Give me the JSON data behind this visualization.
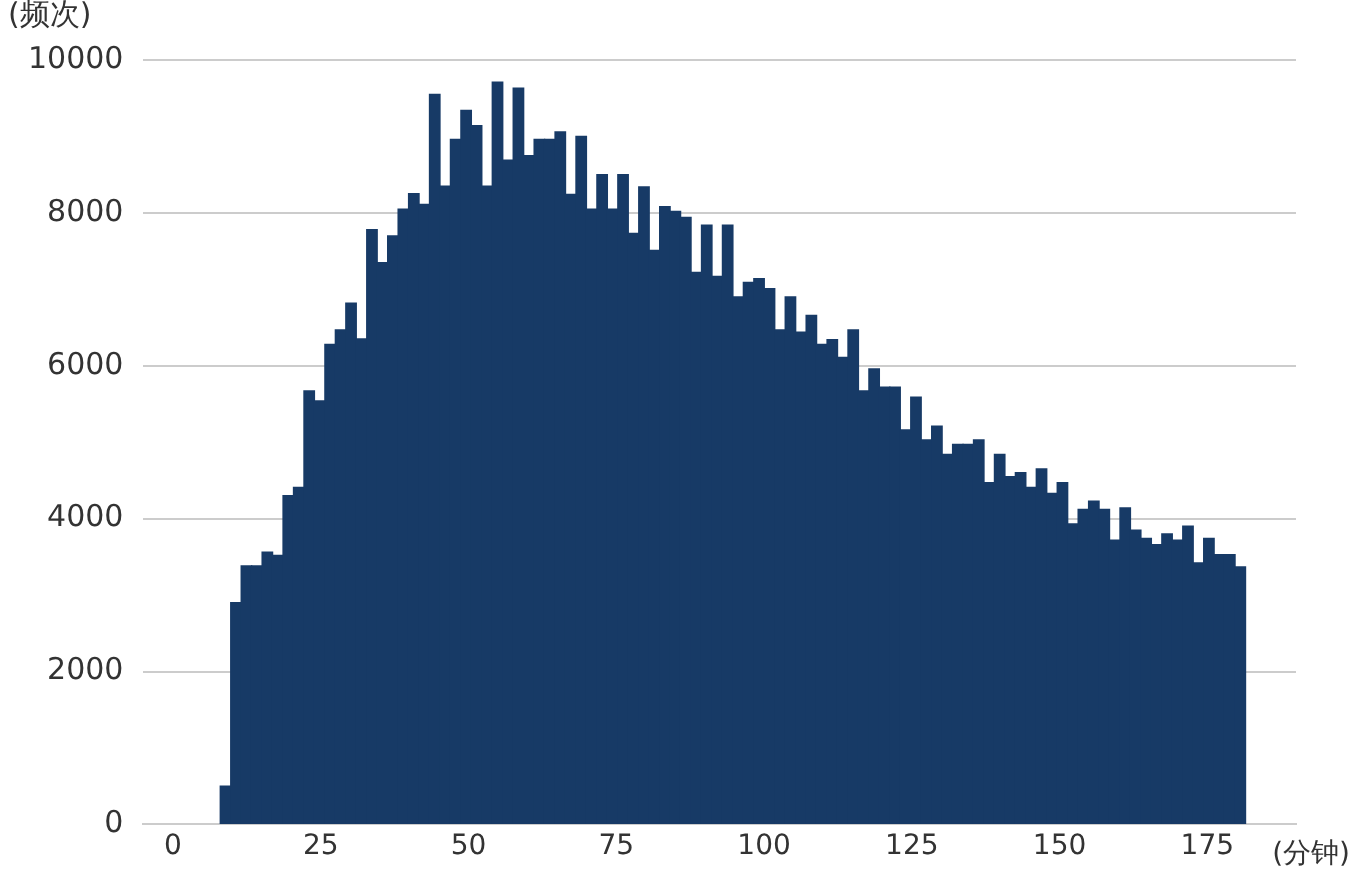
{
  "chart_data": {
    "type": "histogram",
    "xlabel": "(分钟)",
    "ylabel": "(频次)",
    "color": "#173a66",
    "bins": [
      8,
      9.77,
      11.54,
      13.31,
      15.08,
      16.85,
      18.62,
      20.39,
      22.16,
      23.93,
      25.7,
      27.47,
      29.24,
      31.01,
      32.78,
      34.55,
      36.32,
      38.09,
      39.86,
      41.63,
      43.4,
      45.17,
      46.94,
      48.71,
      50.48,
      52.25,
      54.02,
      55.79,
      57.56,
      59.33,
      61.1,
      62.87,
      64.64,
      66.41,
      68.18,
      69.95,
      71.72,
      73.49,
      75.26,
      77.03,
      78.8,
      80.57,
      82.34,
      84.11,
      85.88,
      87.65,
      89.42,
      91.19,
      92.96,
      94.73,
      96.5,
      98.27,
      100.04,
      101.81,
      103.58,
      105.35,
      107.12,
      108.89,
      110.66,
      112.43,
      114.2,
      115.97,
      117.74,
      119.51,
      121.28,
      123.05,
      124.82,
      126.59,
      128.36,
      130.13,
      131.9,
      133.67,
      135.44,
      137.21,
      138.98,
      140.75,
      142.52,
      144.29,
      146.06,
      147.83,
      149.6,
      151.37,
      153.14,
      154.91,
      156.68,
      158.45,
      160.22,
      161.99,
      163.76,
      165.53,
      167.3,
      169.07,
      170.84,
      172.61,
      174.38,
      176.15,
      177.92,
      179.69,
      181.46
    ],
    "values": [
      500,
      2900,
      3380,
      3380,
      3560,
      3520,
      4300,
      4410,
      5670,
      5540,
      6280,
      6470,
      6820,
      6350,
      7780,
      7350,
      7700,
      8050,
      8250,
      8110,
      9550,
      8350,
      8960,
      9340,
      9140,
      8350,
      9710,
      8690,
      9630,
      8750,
      8960,
      8960,
      9060,
      8240,
      9000,
      8050,
      8500,
      8050,
      8500,
      7730,
      8340,
      7510,
      8080,
      8020,
      7940,
      7220,
      7840,
      7170,
      7840,
      6900,
      7090,
      7140,
      7010,
      6470,
      6900,
      6440,
      6660,
      6280,
      6340,
      6110,
      6470,
      5670,
      5960,
      5720,
      5720,
      5160,
      5590,
      5030,
      5210,
      4840,
      4970,
      4970,
      5030,
      4470,
      4840,
      4550,
      4600,
      4410,
      4650,
      4330,
      4470,
      3930,
      4120,
      4230,
      4120,
      3720,
      4140,
      3850,
      3740,
      3660,
      3800,
      3720,
      3900,
      3420,
      3740,
      3530,
      3530,
      3370
    ],
    "xlim": [
      -5,
      190
    ],
    "xticks": [
      0,
      25,
      50,
      75,
      100,
      125,
      150,
      175
    ],
    "ylim": [
      0,
      10000
    ],
    "yticks": [
      0,
      2000,
      4000,
      6000,
      8000,
      10000
    ],
    "grid": "y",
    "legend": false
  }
}
